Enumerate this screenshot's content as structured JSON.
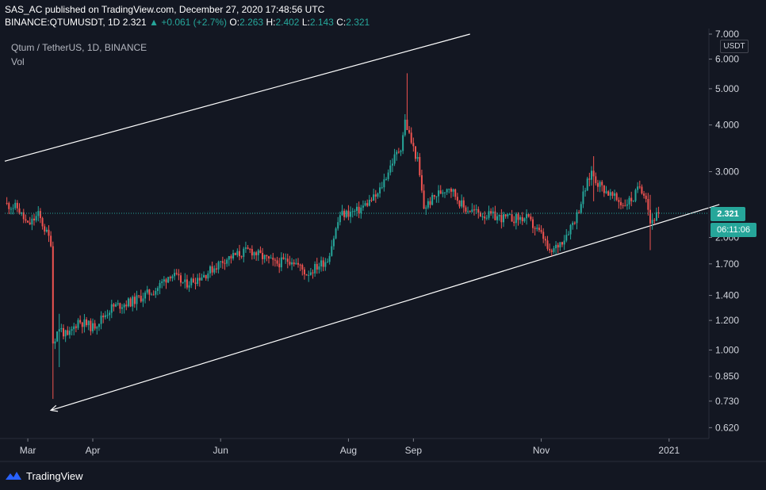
{
  "header": {
    "line1": "SAS_AC published on TradingView.com, December 27, 2020 17:48:56 UTC",
    "symbol": "BINANCE:QTUMUSDT, 1D",
    "last": "2.321",
    "arrow": "▲",
    "change": "+0.061 (+2.7%)",
    "o_label": "O:",
    "o_value": "2.263",
    "h_label": "H:",
    "h_value": "2.402",
    "l_label": "L:",
    "l_value": "2.143",
    "c_label": "C:",
    "c_value": "2.321"
  },
  "legend": {
    "title": "Qtum / TetherUS, 1D, BINANCE",
    "vol": "Vol"
  },
  "price_axis": {
    "unit": "USDT",
    "current_price": "2.321",
    "countdown": "06:11:06"
  },
  "footer": {
    "brand": "TradingView"
  },
  "colors": {
    "background": "#131722",
    "up": "#26a69a",
    "down": "#ef5350",
    "trendline": "#ffffff",
    "price_line": "#26a69a"
  },
  "chart_data": {
    "type": "candlestick",
    "title": "Qtum / TetherUS, 1D, BINANCE",
    "y_scale": "log",
    "ylim": [
      0.58,
      7.0
    ],
    "xlim": [
      "2020-02-19",
      "2021-01-20"
    ],
    "y_ticks": [
      {
        "value": 7.0,
        "label": "7.000"
      },
      {
        "value": 6.0,
        "label": "6.000"
      },
      {
        "value": 5.0,
        "label": "5.000"
      },
      {
        "value": 4.0,
        "label": "4.000"
      },
      {
        "value": 3.0,
        "label": "3.000"
      },
      {
        "value": 2.0,
        "label": "2.000"
      },
      {
        "value": 1.7,
        "label": "1.700"
      },
      {
        "value": 1.4,
        "label": "1.400"
      },
      {
        "value": 1.2,
        "label": "1.200"
      },
      {
        "value": 1.0,
        "label": "1.000"
      },
      {
        "value": 0.85,
        "label": "0.850"
      },
      {
        "value": 0.73,
        "label": "0.730"
      },
      {
        "value": 0.62,
        "label": "0.620"
      }
    ],
    "x_ticks": [
      {
        "date": "2020-03-01",
        "label": "Mar"
      },
      {
        "date": "2020-04-01",
        "label": "Apr"
      },
      {
        "date": "2020-06-01",
        "label": "Jun"
      },
      {
        "date": "2020-08-01",
        "label": "Aug"
      },
      {
        "date": "2020-09-01",
        "label": "Sep"
      },
      {
        "date": "2020-11-01",
        "label": "Nov"
      },
      {
        "date": "2021-01-01",
        "label": "2021"
      }
    ],
    "anchors": [
      [
        "2020-02-20",
        2.45
      ],
      [
        "2020-02-25",
        2.4
      ],
      [
        "2020-03-01",
        2.15
      ],
      [
        "2020-03-06",
        2.3
      ],
      [
        "2020-03-10",
        2.05
      ],
      [
        "2020-03-12",
        1.95
      ],
      [
        "2020-03-13",
        1.05
      ],
      [
        "2020-03-16",
        1.15
      ],
      [
        "2020-03-20",
        1.08
      ],
      [
        "2020-03-25",
        1.2
      ],
      [
        "2020-04-01",
        1.15
      ],
      [
        "2020-04-10",
        1.3
      ],
      [
        "2020-04-20",
        1.35
      ],
      [
        "2020-05-01",
        1.45
      ],
      [
        "2020-05-08",
        1.6
      ],
      [
        "2020-05-15",
        1.5
      ],
      [
        "2020-05-25",
        1.6
      ],
      [
        "2020-06-03",
        1.75
      ],
      [
        "2020-06-15",
        1.85
      ],
      [
        "2020-06-27",
        1.7
      ],
      [
        "2020-07-05",
        1.75
      ],
      [
        "2020-07-12",
        1.6
      ],
      [
        "2020-07-22",
        1.75
      ],
      [
        "2020-07-28",
        2.3
      ],
      [
        "2020-08-05",
        2.35
      ],
      [
        "2020-08-15",
        2.6
      ],
      [
        "2020-08-22",
        3.2
      ],
      [
        "2020-08-26",
        3.5
      ],
      [
        "2020-08-28",
        4.1
      ],
      [
        "2020-08-31",
        3.6
      ],
      [
        "2020-09-03",
        3.2
      ],
      [
        "2020-09-06",
        2.4
      ],
      [
        "2020-09-12",
        2.6
      ],
      [
        "2020-09-18",
        2.75
      ],
      [
        "2020-09-25",
        2.4
      ],
      [
        "2020-10-05",
        2.3
      ],
      [
        "2020-10-15",
        2.25
      ],
      [
        "2020-10-25",
        2.25
      ],
      [
        "2020-11-02",
        2.0
      ],
      [
        "2020-11-05",
        1.8
      ],
      [
        "2020-11-12",
        2.0
      ],
      [
        "2020-11-18",
        2.3
      ],
      [
        "2020-11-22",
        2.7
      ],
      [
        "2020-11-25",
        3.0
      ],
      [
        "2020-11-28",
        2.8
      ],
      [
        "2020-12-04",
        2.6
      ],
      [
        "2020-12-10",
        2.45
      ],
      [
        "2020-12-15",
        2.55
      ],
      [
        "2020-12-18",
        2.75
      ],
      [
        "2020-12-21",
        2.6
      ],
      [
        "2020-12-23",
        2.2
      ],
      [
        "2020-12-25",
        2.26
      ],
      [
        "2020-12-27",
        2.321
      ]
    ],
    "notable_candles": [
      {
        "date": "2020-03-13",
        "high": 1.95,
        "low": 0.74
      },
      {
        "date": "2020-03-16",
        "high": 1.25,
        "low": 0.9
      },
      {
        "date": "2020-08-29",
        "high": 5.5,
        "low": 3.9
      },
      {
        "date": "2020-11-26",
        "high": 3.3,
        "low": 2.5
      },
      {
        "date": "2020-12-23",
        "high": 2.6,
        "low": 1.85
      }
    ],
    "trendlines": [
      {
        "from": [
          "2020-02-19",
          3.2
        ],
        "to": [
          "2020-09-28",
          7.0
        ],
        "style": "solid"
      },
      {
        "from": [
          "2020-03-12",
          0.69
        ],
        "to": [
          "2021-01-25",
          2.45
        ],
        "style": "arrow-start"
      }
    ],
    "last_close": 2.321,
    "last_date": "2020-12-27"
  }
}
